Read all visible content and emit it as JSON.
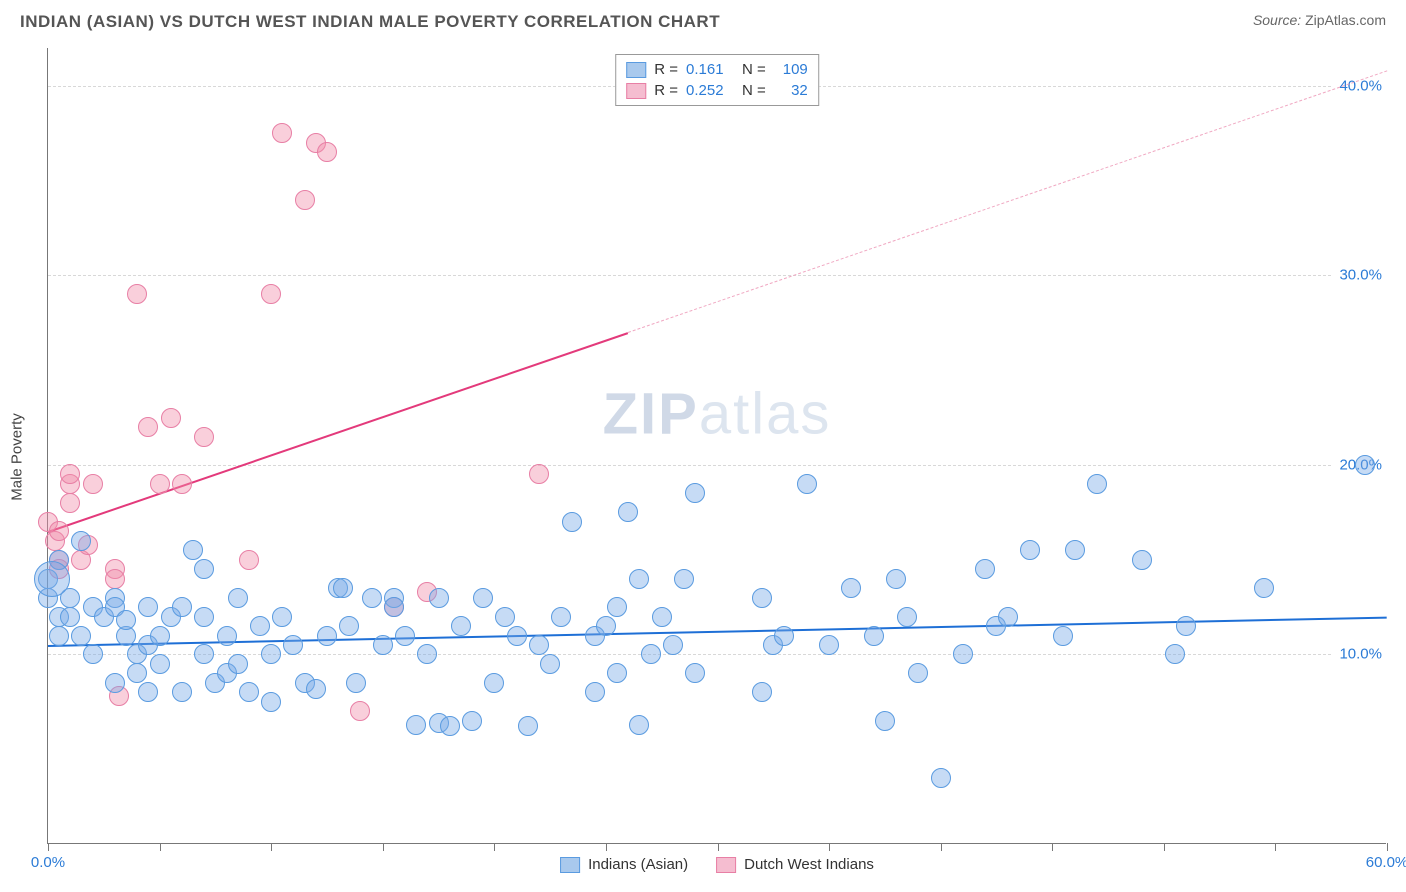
{
  "header": {
    "title": "INDIAN (ASIAN) VS DUTCH WEST INDIAN MALE POVERTY CORRELATION CHART",
    "source_label": "Source:",
    "source_name": "ZipAtlas.com"
  },
  "chart": {
    "type": "scatter",
    "ylabel": "Male Poverty",
    "watermark_a": "ZIP",
    "watermark_b": "atlas",
    "xlim": [
      0,
      60
    ],
    "ylim": [
      0,
      42
    ],
    "y_gridlines": [
      10,
      20,
      30,
      40
    ],
    "y_tick_labels": [
      "10.0%",
      "20.0%",
      "30.0%",
      "40.0%"
    ],
    "x_ticks": [
      0,
      5,
      10,
      15,
      20,
      25,
      30,
      35,
      40,
      45,
      50,
      55,
      60
    ],
    "x_tick_labels": {
      "0": "0.0%",
      "60": "60.0%"
    },
    "x_label_colors": {
      "0": "#2b7bd6",
      "60": "#2b7bd6"
    },
    "y_label_color": "#2b7bd6",
    "grid_color": "#d8d8d8",
    "axis_color": "#777777",
    "background_color": "#ffffff",
    "series": {
      "blue": {
        "name": "Indians (Asian)",
        "fill": "rgba(120,170,230,0.42)",
        "stroke": "#5a9be0",
        "swatch_fill": "#a9c9ed",
        "swatch_border": "#5a9be0",
        "R": "0.161",
        "N": "109",
        "marker_radius": 10,
        "trend": {
          "x0": 0,
          "y0": 10.5,
          "x1": 60,
          "y1": 12.0,
          "color": "#1e6fd6",
          "width": 2.5,
          "dashed": false
        },
        "points": [
          [
            0,
            14
          ],
          [
            0,
            13
          ],
          [
            0.5,
            12
          ],
          [
            0.5,
            11
          ],
          [
            0.5,
            15
          ],
          [
            1,
            13
          ],
          [
            1,
            12
          ],
          [
            1.5,
            11
          ],
          [
            1.5,
            16
          ],
          [
            2,
            12.5
          ],
          [
            2,
            10
          ],
          [
            2.5,
            12
          ],
          [
            3,
            13
          ],
          [
            3,
            8.5
          ],
          [
            3,
            12.5
          ],
          [
            3.5,
            11
          ],
          [
            3.5,
            11.8
          ],
          [
            4,
            10
          ],
          [
            4,
            9
          ],
          [
            4.5,
            8
          ],
          [
            4.5,
            10.5
          ],
          [
            4.5,
            12.5
          ],
          [
            5,
            9.5
          ],
          [
            5,
            11
          ],
          [
            5.5,
            12
          ],
          [
            6,
            12.5
          ],
          [
            6,
            8
          ],
          [
            6.5,
            15.5
          ],
          [
            7,
            12
          ],
          [
            7,
            10
          ],
          [
            7,
            14.5
          ],
          [
            7.5,
            8.5
          ],
          [
            8,
            9
          ],
          [
            8,
            11
          ],
          [
            8.5,
            9.5
          ],
          [
            8.5,
            13
          ],
          [
            9,
            8
          ],
          [
            9.5,
            11.5
          ],
          [
            10,
            10
          ],
          [
            10,
            7.5
          ],
          [
            10.5,
            12
          ],
          [
            11,
            10.5
          ],
          [
            11.5,
            8.5
          ],
          [
            12,
            8.2
          ],
          [
            12.5,
            11
          ],
          [
            13,
            13.5
          ],
          [
            13.2,
            13.5
          ],
          [
            13.5,
            11.5
          ],
          [
            13.8,
            8.5
          ],
          [
            14.5,
            13
          ],
          [
            15,
            10.5
          ],
          [
            15.5,
            13
          ],
          [
            15.5,
            12.5
          ],
          [
            16,
            11
          ],
          [
            16.5,
            6.3
          ],
          [
            17,
            10
          ],
          [
            17.5,
            6.4
          ],
          [
            17.5,
            13
          ],
          [
            18,
            6.2
          ],
          [
            18.5,
            11.5
          ],
          [
            19,
            6.5
          ],
          [
            19.5,
            13
          ],
          [
            20,
            8.5
          ],
          [
            20.5,
            12
          ],
          [
            21,
            11
          ],
          [
            21.5,
            6.2
          ],
          [
            22,
            10.5
          ],
          [
            22.5,
            9.5
          ],
          [
            23,
            12
          ],
          [
            23.5,
            17
          ],
          [
            24.5,
            11
          ],
          [
            24.5,
            8
          ],
          [
            25,
            11.5
          ],
          [
            25.5,
            9
          ],
          [
            25.5,
            12.5
          ],
          [
            26,
            17.5
          ],
          [
            26.5,
            14
          ],
          [
            26.5,
            6.3
          ],
          [
            27,
            10
          ],
          [
            27.5,
            12
          ],
          [
            28,
            10.5
          ],
          [
            28.5,
            14
          ],
          [
            29,
            9
          ],
          [
            29,
            18.5
          ],
          [
            32,
            13
          ],
          [
            32,
            8
          ],
          [
            32.5,
            10.5
          ],
          [
            33,
            11
          ],
          [
            34,
            19
          ],
          [
            35,
            10.5
          ],
          [
            36,
            13.5
          ],
          [
            37,
            11
          ],
          [
            37.5,
            6.5
          ],
          [
            38,
            14
          ],
          [
            38.5,
            12
          ],
          [
            39,
            9
          ],
          [
            40,
            3.5
          ],
          [
            41,
            10
          ],
          [
            42,
            14.5
          ],
          [
            42.5,
            11.5
          ],
          [
            43,
            12
          ],
          [
            44,
            15.5
          ],
          [
            45.5,
            11
          ],
          [
            46,
            15.5
          ],
          [
            47,
            19
          ],
          [
            49,
            15
          ],
          [
            50.5,
            10
          ],
          [
            51,
            11.5
          ],
          [
            54.5,
            13.5
          ],
          [
            59,
            20
          ]
        ],
        "big_points": [
          [
            0.2,
            14,
            18
          ]
        ]
      },
      "pink": {
        "name": "Dutch West Indians",
        "fill": "rgba(240,140,170,0.42)",
        "stroke": "#e87fa5",
        "swatch_fill": "#f5bdd0",
        "swatch_border": "#e87fa5",
        "R": "0.252",
        "N": "32",
        "marker_radius": 10,
        "trend_solid": {
          "x0": 0,
          "y0": 16.5,
          "x1": 26,
          "y1": 27,
          "color": "#e33a7b",
          "width": 2,
          "dashed": false
        },
        "trend_dashed": {
          "x0": 26,
          "y0": 27,
          "x1": 60,
          "y1": 40.8,
          "color": "#f0a8c2",
          "width": 1.5,
          "dashed": true
        },
        "points": [
          [
            0,
            17
          ],
          [
            0.3,
            16
          ],
          [
            0.5,
            16.5
          ],
          [
            0.5,
            15
          ],
          [
            0.5,
            14.5
          ],
          [
            1,
            18
          ],
          [
            1,
            19
          ],
          [
            1,
            19.5
          ],
          [
            1.5,
            15
          ],
          [
            1.8,
            15.8
          ],
          [
            2,
            19
          ],
          [
            3,
            14.5
          ],
          [
            3,
            14
          ],
          [
            3.2,
            7.8
          ],
          [
            4,
            29
          ],
          [
            4.5,
            22
          ],
          [
            5,
            19
          ],
          [
            5.5,
            22.5
          ],
          [
            6,
            19
          ],
          [
            7,
            21.5
          ],
          [
            9,
            15
          ],
          [
            10,
            29
          ],
          [
            10.5,
            37.5
          ],
          [
            11.5,
            34
          ],
          [
            12,
            37
          ],
          [
            12.5,
            36.5
          ],
          [
            14,
            7
          ],
          [
            15.5,
            12.5
          ],
          [
            17,
            13.3
          ],
          [
            22,
            19.5
          ]
        ]
      }
    },
    "legend_top": {
      "R_label": "R =",
      "N_label": "N ="
    },
    "legend_bottom": [
      {
        "key": "blue"
      },
      {
        "key": "pink"
      }
    ]
  }
}
